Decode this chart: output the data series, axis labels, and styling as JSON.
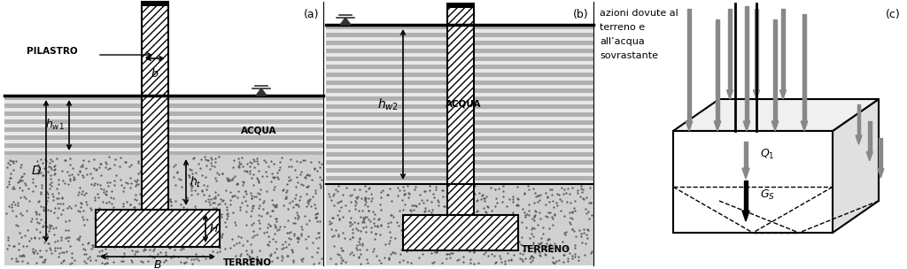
{
  "fig_width": 10.24,
  "fig_height": 3.04,
  "bg_color": "#ffffff",
  "panel_a": {
    "label": "(a)",
    "pilastro_text": "PILASTRO",
    "acqua_text": "ACQUA",
    "terreno_text": "TERRENO",
    "hw1_text": "$h_{w1}$",
    "b_text": "$b$",
    "D_text": "$D$",
    "ht_text": "$h_t$",
    "H_text": "$H$",
    "B_text": "$B$"
  },
  "panel_b": {
    "label": "(b)",
    "acqua_text": "ACQUA",
    "terreno_text": "TERRENO",
    "hw2_text": "$h_{w2}$"
  },
  "panel_c": {
    "label": "(c)",
    "text_line1": "azioni dovute al",
    "text_line2": "terreno e",
    "text_line3": "all’acqua",
    "text_line4": "sovrastante",
    "Q1_text": "$Q_1$",
    "Gs_text": "$G_S$",
    "arrow_color_gray": "#888888",
    "arrow_color_black": "#000000"
  },
  "hatch_pattern": "////",
  "water_stripe_bg": "#e8e8e8",
  "water_stripe_fg": "#b0b0b0",
  "soil_bg": "#d0d0d0",
  "line_color": "#000000"
}
